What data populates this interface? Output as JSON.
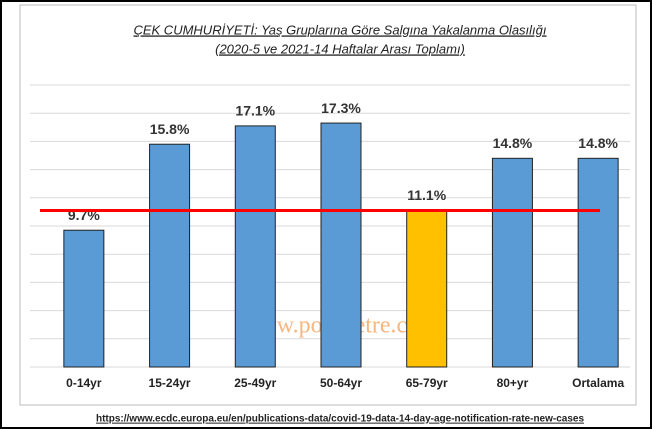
{
  "chart_data": {
    "type": "bar",
    "title": "ÇEK CUMHURİYETİ: Yaş Gruplarına Göre Salgına Yakalanma Olasılığı",
    "subtitle": "(2020-5 ve 2021-14 Haftalar Arası Toplamı)",
    "categories": [
      "0-14yr",
      "15-24yr",
      "25-49yr",
      "50-64yr",
      "65-79yr",
      "80+yr",
      "Ortalama"
    ],
    "values": [
      9.7,
      15.8,
      17.1,
      17.3,
      11.1,
      14.8,
      14.8
    ],
    "value_labels": [
      "9.7%",
      "15.8%",
      "17.1%",
      "17.3%",
      "11.1%",
      "14.8%",
      "14.8%"
    ],
    "colors": [
      "#5b9bd5",
      "#5b9bd5",
      "#5b9bd5",
      "#5b9bd5",
      "#ffc000",
      "#5b9bd5",
      "#5b9bd5"
    ],
    "reference_line": {
      "value": 11.1,
      "color": "#ff0000"
    },
    "ylim": [
      0,
      20
    ],
    "yticks": [
      0,
      2,
      4,
      6,
      8,
      10,
      12,
      14,
      16,
      18,
      20
    ],
    "grid": true,
    "watermark": "www.polimetre.com",
    "source": "https://www.ecdc.europa.eu/en/publications-data/covid-19-data-14-day-age-notification-rate-new-cases"
  }
}
